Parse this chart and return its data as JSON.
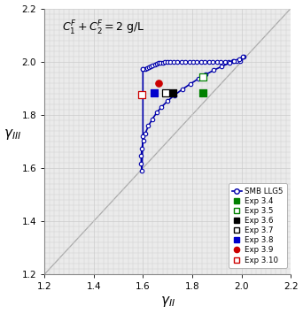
{
  "title": "$C_1^F+C_2^F=2$ g/L",
  "xlabel": "$\\gamma_{II}$",
  "ylabel": "$\\gamma_{III}$",
  "xlim": [
    1.2,
    2.2
  ],
  "ylim": [
    1.2,
    2.2
  ],
  "xticks": [
    1.2,
    1.4,
    1.6,
    1.8,
    2.0,
    2.2
  ],
  "yticks": [
    1.2,
    1.4,
    1.6,
    1.8,
    2.0,
    2.2
  ],
  "smb_llg5": [
    [
      1.6,
      1.972
    ],
    [
      1.608,
      1.974
    ],
    [
      1.616,
      1.977
    ],
    [
      1.624,
      1.98
    ],
    [
      1.632,
      1.983
    ],
    [
      1.64,
      1.986
    ],
    [
      1.648,
      1.989
    ],
    [
      1.656,
      1.992
    ],
    [
      1.664,
      1.994
    ],
    [
      1.672,
      1.996
    ],
    [
      1.68,
      1.997
    ],
    [
      1.69,
      1.998
    ],
    [
      1.7,
      1.999
    ],
    [
      1.712,
      1.999
    ],
    [
      1.724,
      2.0
    ],
    [
      1.74,
      2.0
    ],
    [
      1.756,
      2.0
    ],
    [
      1.772,
      2.0
    ],
    [
      1.788,
      2.0
    ],
    [
      1.804,
      2.0
    ],
    [
      1.82,
      2.0
    ],
    [
      1.836,
      2.0
    ],
    [
      1.852,
      2.0
    ],
    [
      1.868,
      2.0
    ],
    [
      1.884,
      2.0
    ],
    [
      1.9,
      2.0
    ],
    [
      1.916,
      2.0
    ],
    [
      1.932,
      2.0
    ],
    [
      1.948,
      2.0
    ],
    [
      1.964,
      2.001
    ],
    [
      1.98,
      2.001
    ],
    [
      1.996,
      2.001
    ],
    [
      2.01,
      2.018
    ],
    [
      2.005,
      2.018
    ],
    [
      1.99,
      2.01
    ],
    [
      1.97,
      2.002
    ],
    [
      1.95,
      1.994
    ],
    [
      1.92,
      1.982
    ],
    [
      1.888,
      1.968
    ],
    [
      1.856,
      1.952
    ],
    [
      1.824,
      1.935
    ],
    [
      1.792,
      1.916
    ],
    [
      1.76,
      1.896
    ],
    [
      1.728,
      1.874
    ],
    [
      1.7,
      1.852
    ],
    [
      1.676,
      1.83
    ],
    [
      1.656,
      1.808
    ],
    [
      1.638,
      1.784
    ],
    [
      1.622,
      1.758
    ],
    [
      1.61,
      1.731
    ],
    [
      1.601,
      1.703
    ],
    [
      1.596,
      1.674
    ],
    [
      1.593,
      1.645
    ],
    [
      1.593,
      1.616
    ],
    [
      1.596,
      1.589
    ],
    [
      1.6,
      1.72
    ],
    [
      1.6,
      1.972
    ]
  ],
  "exp_34": {
    "x": [
      1.845
    ],
    "y": [
      1.882
    ],
    "color": "#008000",
    "marker": "s",
    "filled": true,
    "size": 28
  },
  "exp_35": {
    "x": [
      1.845
    ],
    "y": [
      1.942
    ],
    "color": "#008000",
    "marker": "s",
    "filled": false,
    "size": 28
  },
  "exp_36": {
    "x": [
      1.72
    ],
    "y": [
      1.882
    ],
    "color": "#000000",
    "marker": "s",
    "filled": true,
    "size": 28
  },
  "exp_37": {
    "x": [
      1.692
    ],
    "y": [
      1.882
    ],
    "color": "#000000",
    "marker": "s",
    "filled": false,
    "size": 28
  },
  "exp_38": {
    "x": [
      1.645
    ],
    "y": [
      1.882
    ],
    "color": "#0000cc",
    "marker": "s",
    "filled": true,
    "size": 28
  },
  "exp_39": {
    "x": [
      1.662
    ],
    "y": [
      1.918
    ],
    "color": "#cc0000",
    "marker": "o",
    "filled": true,
    "size": 28
  },
  "exp_310": {
    "x": [
      1.594
    ],
    "y": [
      1.876
    ],
    "color": "#cc0000",
    "marker": "s",
    "filled": false,
    "size": 28
  },
  "smb_color": "#0000aa",
  "grid_color": "#cccccc",
  "bg_color": "#ebebeb"
}
